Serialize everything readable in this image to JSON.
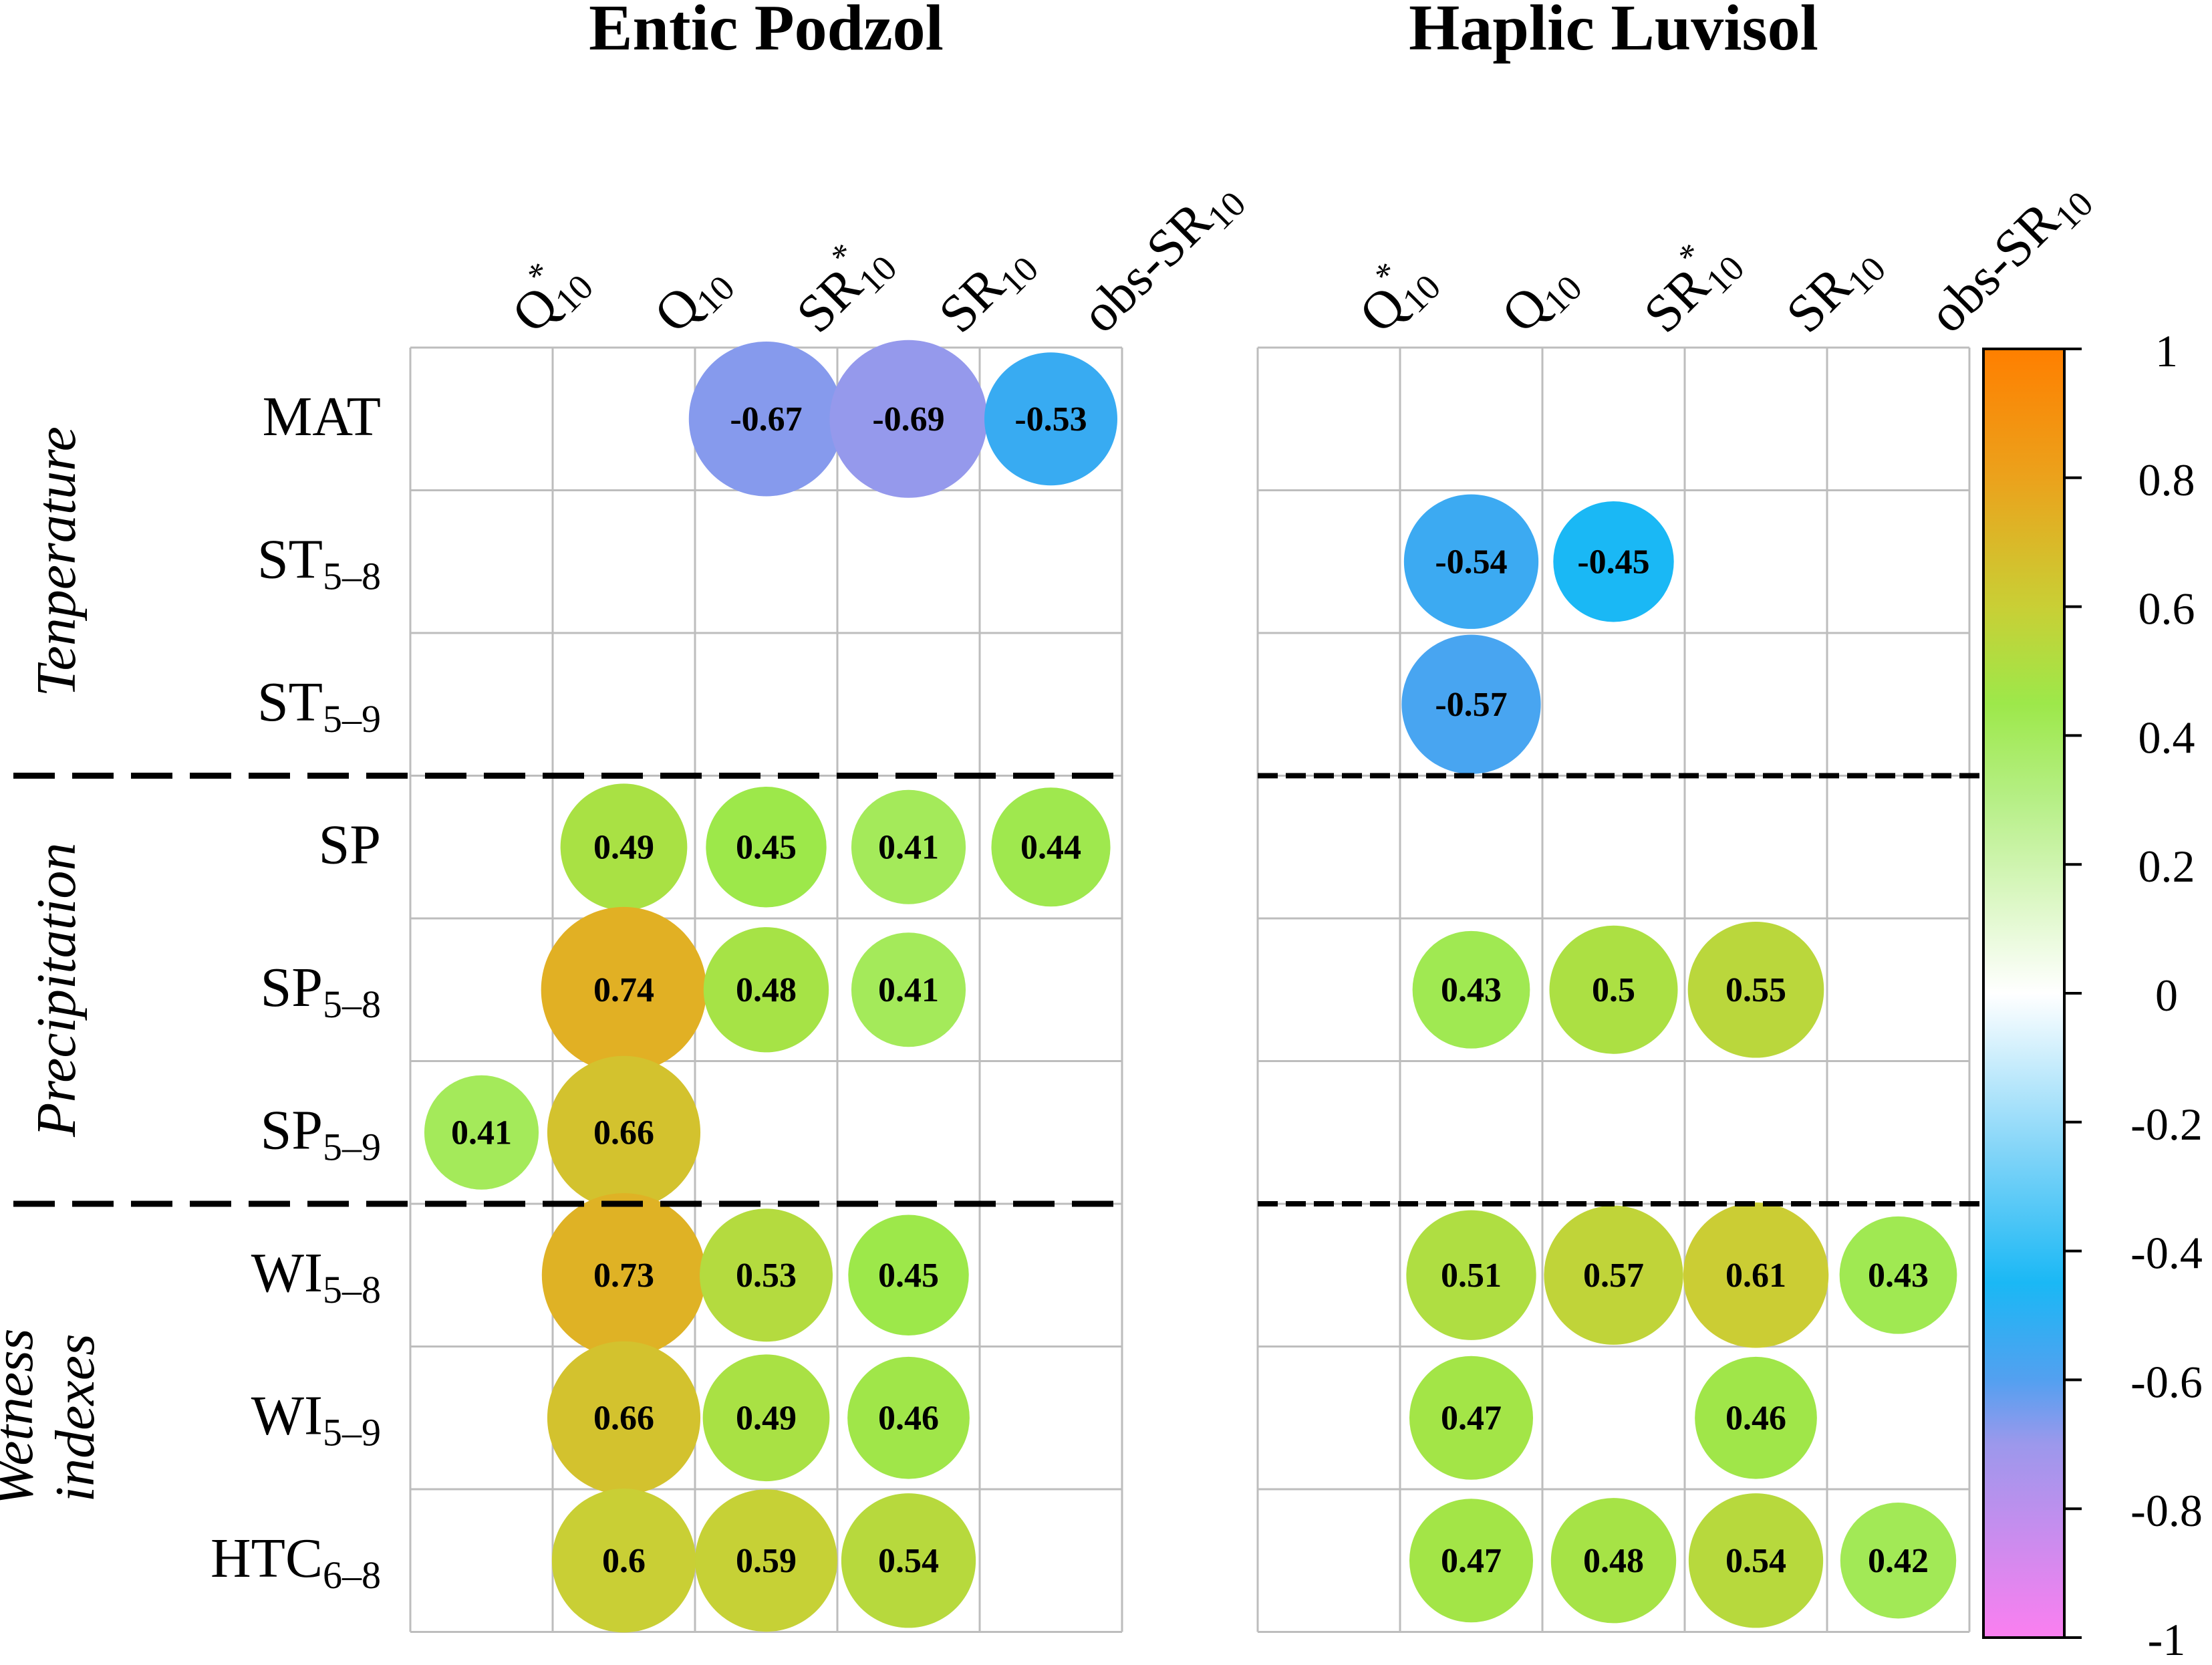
{
  "chart_data": {
    "type": "heatmap",
    "subtype": "correlation bubble matrix",
    "panels": [
      {
        "title": "Entic Podzol",
        "columns": [
          {
            "label": "Q",
            "sup": "*",
            "sub": "10"
          },
          {
            "label": "Q",
            "sup": "",
            "sub": "10"
          },
          {
            "label": "SR",
            "sup": "*",
            "sub": "10"
          },
          {
            "label": "SR",
            "sup": "",
            "sub": "10"
          },
          {
            "label": "obs-SR",
            "sup": "",
            "sub": "10"
          }
        ],
        "values": [
          [
            null,
            null,
            -0.67,
            -0.69,
            -0.53
          ],
          [
            null,
            null,
            null,
            null,
            null
          ],
          [
            null,
            null,
            null,
            null,
            null
          ],
          [
            null,
            0.49,
            0.45,
            0.41,
            0.44
          ],
          [
            null,
            0.74,
            0.48,
            0.41,
            null
          ],
          [
            0.41,
            0.66,
            null,
            null,
            null
          ],
          [
            null,
            0.73,
            0.53,
            0.45,
            null
          ],
          [
            null,
            0.66,
            0.49,
            0.46,
            null
          ],
          [
            null,
            0.6,
            0.59,
            0.54,
            null
          ]
        ]
      },
      {
        "title": "Haplic Luvisol",
        "columns": [
          {
            "label": "Q",
            "sup": "*",
            "sub": "10"
          },
          {
            "label": "Q",
            "sup": "",
            "sub": "10"
          },
          {
            "label": "SR",
            "sup": "*",
            "sub": "10"
          },
          {
            "label": "SR",
            "sup": "",
            "sub": "10"
          },
          {
            "label": "obs-SR",
            "sup": "",
            "sub": "10"
          }
        ],
        "values": [
          [
            null,
            null,
            null,
            null,
            null
          ],
          [
            null,
            -0.54,
            -0.45,
            null,
            null
          ],
          [
            null,
            -0.57,
            null,
            null,
            null
          ],
          [
            null,
            null,
            null,
            null,
            null
          ],
          [
            null,
            0.43,
            0.5,
            0.55,
            null
          ],
          [
            null,
            null,
            null,
            null,
            null
          ],
          [
            null,
            0.51,
            0.57,
            0.61,
            0.43
          ],
          [
            null,
            0.47,
            null,
            0.46,
            null
          ],
          [
            null,
            0.47,
            0.48,
            0.54,
            0.42
          ]
        ]
      }
    ],
    "rows": [
      {
        "label": "MAT",
        "sub": ""
      },
      {
        "label": "ST",
        "sub": "5–8"
      },
      {
        "label": "ST",
        "sub": "5–9"
      },
      {
        "label": "SP",
        "sub": ""
      },
      {
        "label": "SP",
        "sub": "5–8"
      },
      {
        "label": "SP",
        "sub": "5–9"
      },
      {
        "label": "WI",
        "sub": "5–8"
      },
      {
        "label": "WI",
        "sub": "5–9"
      },
      {
        "label": "HTC",
        "sub": "6–8"
      }
    ],
    "groups": [
      {
        "lines": [
          "Tenperature"
        ],
        "rows": [
          0,
          2
        ]
      },
      {
        "lines": [
          "Precipitation"
        ],
        "rows": [
          3,
          5
        ]
      },
      {
        "lines": [
          "Wetness",
          "indexes"
        ],
        "rows": [
          6,
          8
        ]
      }
    ],
    "colorbar": {
      "range": [
        -1,
        1
      ],
      "ticks": [
        "1",
        "0.8",
        "0.6",
        "0.4",
        "0.2",
        "0",
        "-0.2",
        "-0.4",
        "-0.6",
        "-0.8",
        "-1"
      ],
      "stops": [
        {
          "v": 1,
          "color": "#ff7f00"
        },
        {
          "v": 0.8,
          "color": "#eba21c"
        },
        {
          "v": 0.6,
          "color": "#c9cf35"
        },
        {
          "v": 0.45,
          "color": "#9de84a"
        },
        {
          "v": 0.3,
          "color": "#b6ef86"
        },
        {
          "v": 0,
          "color": "#ffffff"
        },
        {
          "v": -0.25,
          "color": "#80d4f8"
        },
        {
          "v": -0.45,
          "color": "#1ab8f5"
        },
        {
          "v": -0.6,
          "color": "#53a0f0"
        },
        {
          "v": -0.7,
          "color": "#9c98ec"
        },
        {
          "v": -1,
          "color": "#fb7ff0"
        }
      ]
    }
  }
}
